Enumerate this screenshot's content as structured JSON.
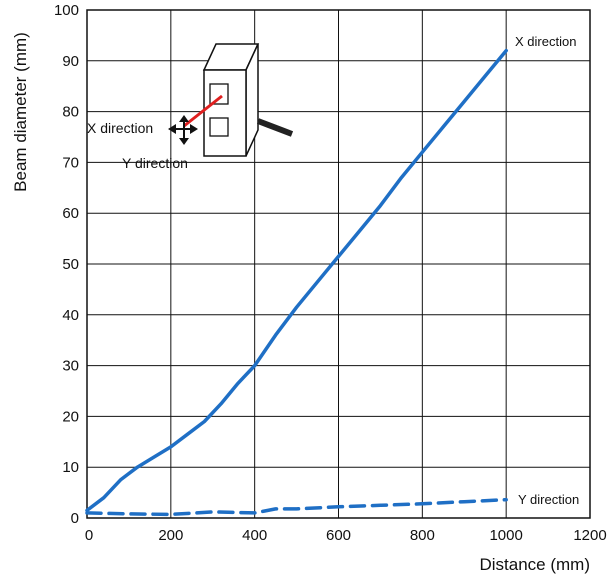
{
  "chart_data": {
    "type": "line",
    "xlabel": "Distance (mm)",
    "ylabel": "Beam diameter (mm)",
    "xlim": [
      0,
      1200
    ],
    "ylim": [
      0,
      100
    ],
    "xticks": [
      0,
      200,
      400,
      600,
      800,
      1000,
      1200
    ],
    "yticks": [
      0,
      10,
      20,
      30,
      40,
      50,
      60,
      70,
      80,
      90,
      100
    ],
    "grid": true,
    "series": [
      {
        "name": "X direction",
        "style": "solid",
        "color": "#1f6fc5",
        "x": [
          0,
          40,
          80,
          120,
          160,
          200,
          240,
          280,
          320,
          360,
          400,
          450,
          500,
          550,
          600,
          650,
          700,
          750,
          800,
          850,
          900,
          950,
          1000
        ],
        "y": [
          1.5,
          4,
          7.5,
          10,
          12,
          14,
          16.5,
          19,
          22.5,
          26.5,
          30,
          36,
          41.5,
          46.5,
          51.5,
          56.5,
          61.5,
          67,
          72,
          77,
          82,
          87,
          92
        ]
      },
      {
        "name": "Y direction",
        "style": "dashed",
        "color": "#1f6fc5",
        "x": [
          0,
          100,
          200,
          300,
          400,
          450,
          500,
          600,
          700,
          800,
          900,
          1000
        ],
        "y": [
          1,
          0.8,
          0.7,
          1.2,
          1,
          1.8,
          1.8,
          2.2,
          2.5,
          2.8,
          3.2,
          3.6
        ]
      }
    ],
    "inset": {
      "x_label": "X direction",
      "y_label": "Y direction"
    }
  }
}
